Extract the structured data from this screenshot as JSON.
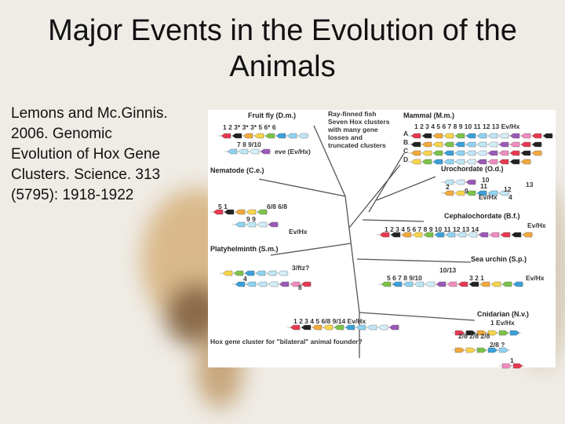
{
  "title": "Major Events in the Evolution of the Animals",
  "citation": [
    "Lemons and Mc.Ginnis.",
    "2006. Genomic",
    "Evolution of Hox Gene",
    "Clusters. Science. 313",
    "(5795): 1918-1922"
  ],
  "figure": {
    "labels": [
      "Fruit fly (D.m.)",
      "1 2 3* 3* 3* 5 6* 6",
      "7 8 9/10",
      "eve (Ev/Hx)",
      "Ray-finned fish",
      "Seven Hox clusters",
      "with many gene",
      "losses and",
      "truncated clusters",
      "Mammal (M.m.)",
      "1 2 3 4 5 6 7 8 9 10 11 12 13 Ev/Hx",
      "A",
      "B",
      "C",
      "D",
      "Urochordate (O.d.)",
      "10",
      "13",
      "2",
      "9",
      "11",
      "12",
      "Ev/Hx",
      "4",
      "Nematode (C.e.)",
      "5 1",
      "6/8 6/8",
      "9 9",
      "Ev/Hx",
      "Cephalochordate (B.f.)",
      "1 2 3 4 5 6 7 8 9 10 11 12 13 14",
      "Ev/Hx",
      "Platyhelminth (S.m.)",
      "3/ftz?",
      "4",
      "8",
      "Sea urchin (S.p.)",
      "10/13",
      "5 6 7 8 9/10",
      "3 2 1",
      "Ev/Hx",
      "1 2 3 4 5 6/8 9/14 Ev/Hx",
      "Cnidarian (N.v.)",
      "1 Ev/Hx",
      "2/8 2/8 2/8",
      "2/8 ?",
      "1",
      "Hox gene cluster for \"bilateral\" animal founder?"
    ]
  }
}
